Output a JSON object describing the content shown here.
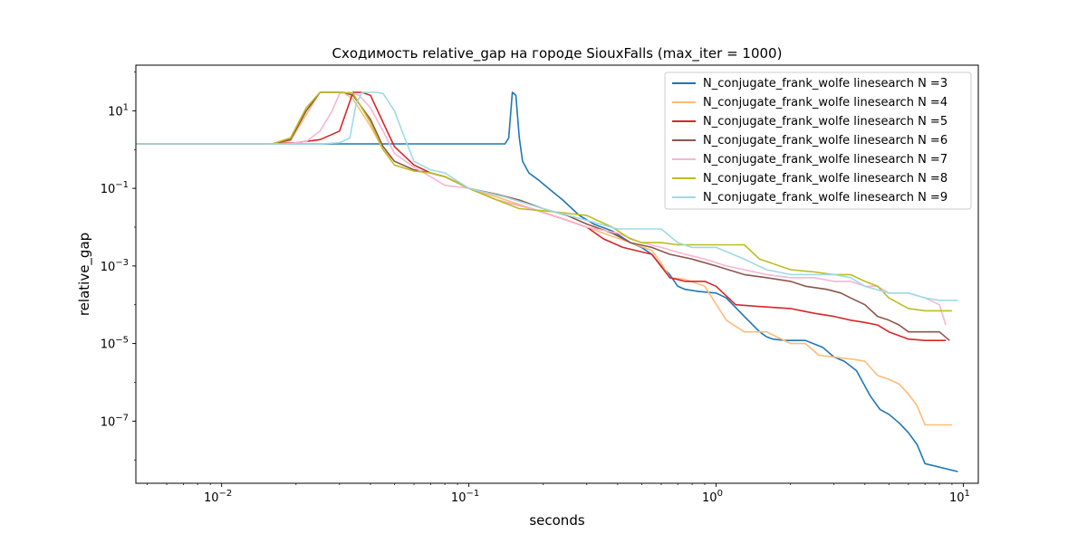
{
  "chart_data": {
    "type": "line",
    "title": "Сходимость relative_gap на городе SiouxFalls  (max_iter = 1000)",
    "xlabel": "seconds",
    "ylabel": "relative_gap",
    "xscale": "log",
    "yscale": "log",
    "xlim": [
      0.0045,
      11.5
    ],
    "ylim": [
      2.5e-09,
      150
    ],
    "x_ticks": [
      {
        "value": 0.01,
        "label": "10",
        "exp": "−2"
      },
      {
        "value": 0.1,
        "label": "10",
        "exp": "−1"
      },
      {
        "value": 1,
        "label": "10",
        "exp": "0"
      },
      {
        "value": 10,
        "label": "10",
        "exp": "1"
      }
    ],
    "y_ticks": [
      {
        "value": 1e-07,
        "label": "10",
        "exp": "−7"
      },
      {
        "value": 1e-05,
        "label": "10",
        "exp": "−5"
      },
      {
        "value": 0.001,
        "label": "10",
        "exp": "−3"
      },
      {
        "value": 0.1,
        "label": "10",
        "exp": "−1"
      },
      {
        "value": 10,
        "label": "10",
        "exp": "1"
      }
    ],
    "grid": false,
    "legend_position": "top-right",
    "series": [
      {
        "name": "N_conjugate_frank_wolfe linesearch N =3",
        "color": "#1f77b4",
        "x": [
          0.0045,
          0.14,
          0.145,
          0.15,
          0.155,
          0.16,
          0.165,
          0.175,
          0.19,
          0.21,
          0.24,
          0.28,
          0.32,
          0.38,
          0.45,
          0.5,
          0.55,
          0.6,
          0.65,
          0.7,
          0.75,
          0.85,
          1.0,
          1.1,
          1.3,
          1.5,
          1.6,
          1.7,
          1.9,
          2.3,
          2.7,
          3.0,
          3.3,
          3.7,
          4.0,
          4.2,
          4.6,
          5.0,
          5.5,
          6.0,
          6.5,
          7.0,
          9.5
        ],
        "y": [
          1.4,
          1.4,
          2.0,
          30,
          25,
          2.0,
          0.5,
          0.25,
          0.17,
          0.1,
          0.05,
          0.02,
          0.012,
          0.008,
          0.004,
          0.003,
          0.002,
          0.001,
          0.0006,
          0.0003,
          0.00025,
          0.00022,
          0.0002,
          0.00015,
          5e-05,
          2e-05,
          1.5e-05,
          1.3e-05,
          1.2e-05,
          1.2e-05,
          8e-06,
          4.5e-06,
          3.5e-06,
          2e-06,
          8e-07,
          4.5e-07,
          2e-07,
          1.5e-07,
          9e-08,
          5e-08,
          2.5e-08,
          8e-09,
          5e-09
        ]
      },
      {
        "name": "N_conjugate_frank_wolfe linesearch N =4",
        "color": "#ffbb78",
        "x": [
          0.0045,
          0.016,
          0.019,
          0.022,
          0.025,
          0.028,
          0.031,
          0.034,
          0.04,
          0.045,
          0.05,
          0.06,
          0.07,
          0.08,
          0.1,
          0.13,
          0.18,
          0.25,
          0.35,
          0.45,
          0.55,
          0.6,
          0.65,
          0.75,
          0.9,
          1.1,
          1.3,
          1.6,
          2.0,
          2.3,
          2.6,
          3.0,
          3.5,
          4.0,
          4.5,
          5.0,
          5.5,
          6.0,
          6.5,
          7.0,
          9.0
        ],
        "y": [
          1.4,
          1.4,
          1.7,
          8,
          30,
          30,
          30,
          20,
          4,
          1.0,
          0.5,
          0.3,
          0.25,
          0.2,
          0.1,
          0.06,
          0.03,
          0.015,
          0.007,
          0.004,
          0.0025,
          0.0012,
          0.0005,
          0.00045,
          0.0003,
          4e-05,
          2e-05,
          2e-05,
          1e-05,
          1e-05,
          5e-06,
          4.5e-06,
          4e-06,
          3.5e-06,
          1.5e-06,
          1.2e-06,
          9e-07,
          5e-07,
          2.5e-07,
          8e-08,
          8e-08
        ]
      },
      {
        "name": "N_conjugate_frank_wolfe linesearch N =5",
        "color": "#d62728",
        "x": [
          0.0045,
          0.016,
          0.02,
          0.025,
          0.03,
          0.034,
          0.037,
          0.04,
          0.045,
          0.05,
          0.06,
          0.07,
          0.08,
          0.1,
          0.13,
          0.18,
          0.25,
          0.3,
          0.35,
          0.42,
          0.55,
          0.65,
          0.75,
          0.9,
          1.0,
          1.2,
          1.5,
          2.0,
          2.5,
          3.0,
          3.5,
          4.0,
          4.5,
          5.0,
          6.0,
          7.0,
          8.5
        ],
        "y": [
          1.4,
          1.4,
          1.5,
          1.8,
          3.0,
          30,
          30,
          25,
          5,
          1.2,
          0.4,
          0.25,
          0.2,
          0.1,
          0.05,
          0.03,
          0.015,
          0.01,
          0.005,
          0.003,
          0.002,
          0.0005,
          0.0004,
          0.0004,
          0.0003,
          0.0001,
          9e-05,
          8e-05,
          6e-05,
          5e-05,
          4e-05,
          3.5e-05,
          3e-05,
          2e-05,
          1.3e-05,
          1.2e-05,
          1.2e-05
        ]
      },
      {
        "name": "N_conjugate_frank_wolfe linesearch N =6",
        "color": "#8c564b",
        "x": [
          0.0045,
          0.016,
          0.019,
          0.022,
          0.025,
          0.028,
          0.031,
          0.034,
          0.04,
          0.045,
          0.05,
          0.06,
          0.07,
          0.08,
          0.1,
          0.13,
          0.16,
          0.2,
          0.25,
          0.3,
          0.38,
          0.45,
          0.55,
          0.65,
          0.8,
          1.0,
          1.3,
          1.6,
          2.0,
          2.3,
          2.8,
          3.2,
          3.5,
          4.0,
          4.5,
          5.0,
          5.5,
          6.0,
          7.0,
          8.0,
          8.8
        ],
        "y": [
          1.4,
          1.4,
          1.8,
          10,
          30,
          30,
          30,
          25,
          6,
          1.2,
          0.5,
          0.3,
          0.25,
          0.2,
          0.1,
          0.07,
          0.05,
          0.03,
          0.02,
          0.012,
          0.007,
          0.004,
          0.003,
          0.002,
          0.0015,
          0.001,
          0.0006,
          0.0005,
          0.0004,
          0.0003,
          0.00025,
          0.0002,
          0.00015,
          0.0001,
          5e-05,
          4e-05,
          3e-05,
          2e-05,
          2e-05,
          2e-05,
          1.2e-05
        ]
      },
      {
        "name": "N_conjugate_frank_wolfe linesearch N =7",
        "color": "#f7b6d2",
        "x": [
          0.0045,
          0.018,
          0.022,
          0.025,
          0.028,
          0.03,
          0.033,
          0.036,
          0.04,
          0.045,
          0.05,
          0.06,
          0.07,
          0.08,
          0.1,
          0.13,
          0.18,
          0.25,
          0.3,
          0.4,
          0.5,
          0.6,
          0.75,
          0.9,
          1.1,
          1.3,
          1.6,
          2.0,
          2.5,
          3.0,
          3.5,
          4.0,
          4.5,
          5.0,
          6.0,
          7.0,
          8.0,
          8.5
        ],
        "y": [
          1.4,
          1.4,
          1.6,
          3,
          10,
          28,
          30,
          25,
          12,
          3,
          0.8,
          0.35,
          0.2,
          0.12,
          0.1,
          0.05,
          0.03,
          0.015,
          0.01,
          0.007,
          0.004,
          0.003,
          0.002,
          0.0015,
          0.001,
          0.0008,
          0.0006,
          0.0005,
          0.0005,
          0.0004,
          0.0004,
          0.0003,
          0.0003,
          0.0002,
          0.0002,
          0.00015,
          0.0001,
          3e-05
        ]
      },
      {
        "name": "N_conjugate_frank_wolfe linesearch N =8",
        "color": "#bcbd22",
        "x": [
          0.0045,
          0.016,
          0.019,
          0.022,
          0.025,
          0.028,
          0.031,
          0.034,
          0.04,
          0.045,
          0.05,
          0.06,
          0.07,
          0.08,
          0.1,
          0.13,
          0.16,
          0.22,
          0.3,
          0.38,
          0.45,
          0.5,
          0.6,
          0.7,
          0.8,
          1.0,
          1.3,
          1.5,
          2.0,
          2.5,
          3.0,
          3.5,
          4.0,
          4.5,
          5.0,
          6.0,
          7.0,
          9.0
        ],
        "y": [
          1.4,
          1.4,
          2.0,
          12,
          30,
          30,
          30,
          28,
          5,
          1.0,
          0.4,
          0.28,
          0.25,
          0.2,
          0.1,
          0.05,
          0.03,
          0.025,
          0.02,
          0.01,
          0.005,
          0.004,
          0.004,
          0.0035,
          0.0035,
          0.0035,
          0.0035,
          0.0015,
          0.0008,
          0.0007,
          0.0006,
          0.0006,
          0.0004,
          0.0003,
          0.00015,
          8e-05,
          7e-05,
          7e-05
        ]
      },
      {
        "name": "N_conjugate_frank_wolfe linesearch N =9",
        "color": "#9edae5",
        "x": [
          0.0045,
          0.025,
          0.03,
          0.033,
          0.035,
          0.037,
          0.04,
          0.042,
          0.045,
          0.05,
          0.055,
          0.06,
          0.07,
          0.08,
          0.1,
          0.14,
          0.2,
          0.3,
          0.4,
          0.5,
          0.6,
          0.7,
          0.8,
          1.0,
          1.3,
          1.6,
          2.0,
          2.5,
          3.0,
          3.5,
          4.0,
          5.0,
          6.0,
          7.0,
          8.0,
          9.5
        ],
        "y": [
          1.4,
          1.4,
          1.5,
          2.0,
          15,
          30,
          30,
          30,
          28,
          10,
          2,
          0.5,
          0.3,
          0.25,
          0.1,
          0.06,
          0.03,
          0.015,
          0.009,
          0.009,
          0.009,
          0.004,
          0.003,
          0.003,
          0.0015,
          0.0008,
          0.0006,
          0.0006,
          0.0006,
          0.0005,
          0.0003,
          0.0002,
          0.0002,
          0.00015,
          0.00013,
          0.00013
        ]
      }
    ]
  }
}
